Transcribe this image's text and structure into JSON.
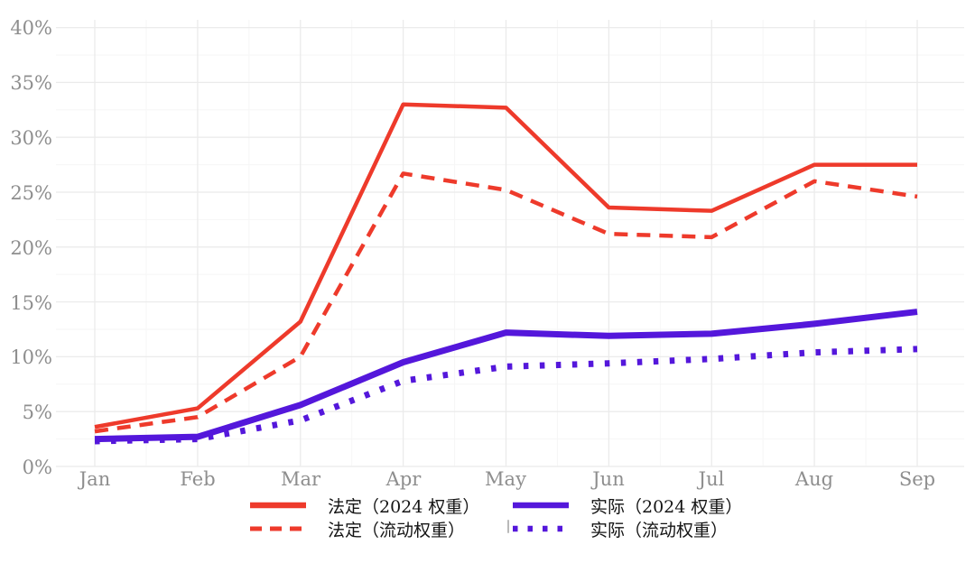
{
  "chart_data": {
    "type": "line",
    "title": "",
    "xlabel": "",
    "ylabel": "",
    "categories": [
      "Jan",
      "Feb",
      "Mar",
      "Apr",
      "May",
      "Jun",
      "Jul",
      "Aug",
      "Sep"
    ],
    "series": [
      {
        "name": "法定（2024 权重）",
        "style": "solid",
        "color": "#ee3a2b",
        "width": 4.5,
        "values": [
          3.6,
          5.3,
          13.2,
          33.0,
          32.7,
          23.6,
          23.3,
          27.5,
          27.5
        ]
      },
      {
        "name": "法定（流动权重）",
        "style": "dashed",
        "color": "#ee3a2b",
        "width": 4.5,
        "values": [
          3.2,
          4.5,
          10.0,
          26.7,
          25.2,
          21.2,
          20.9,
          26.0,
          24.6
        ]
      },
      {
        "name": "实际（2024 权重）",
        "style": "solid",
        "color": "#5417db",
        "width": 7,
        "values": [
          2.5,
          2.7,
          5.6,
          9.5,
          12.2,
          11.9,
          12.1,
          13.0,
          14.1
        ]
      },
      {
        "name": "实际（流动权重）",
        "style": "dotted",
        "color": "#5417db",
        "width": 7,
        "values": [
          2.3,
          2.5,
          4.2,
          7.8,
          9.1,
          9.4,
          9.8,
          10.4,
          10.7
        ]
      }
    ],
    "ylim": [
      0,
      40
    ],
    "y_tick_step": 5,
    "y_tick_labels": [
      "0%",
      "5%",
      "10%",
      "15%",
      "20%",
      "25%",
      "30%",
      "35%",
      "40%"
    ],
    "grid": true,
    "minor_grid": true,
    "legend_position": "bottom",
    "colors": {
      "background": "#ffffff",
      "grid_major": "#ebebeb",
      "grid_minor": "#f6f6f6",
      "tick_label": "#8e8e8e",
      "legend_text": "#141414"
    }
  }
}
